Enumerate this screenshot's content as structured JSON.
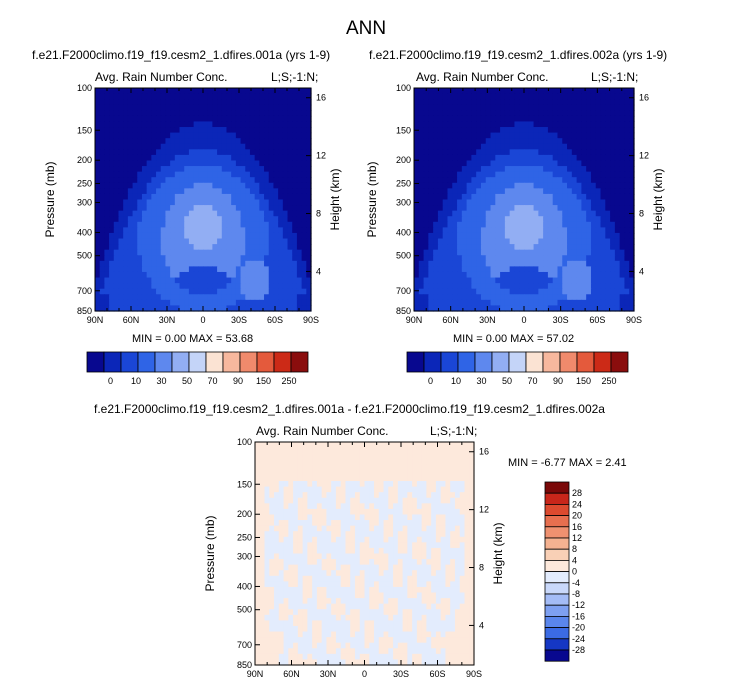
{
  "figure": {
    "title": "ANN"
  },
  "colors": {
    "abs_scale": [
      "#08088f",
      "#0b26b8",
      "#1a46d6",
      "#2f64e6",
      "#5e88ee",
      "#92aef3",
      "#c4d4f8",
      "#fbe3d3",
      "#f7b89e",
      "#f08a6c",
      "#e45a3c",
      "#cc2a17",
      "#8a0d0d"
    ],
    "diff_scale": [
      "#08088f",
      "#0b1fa8",
      "#1537c4",
      "#2451d9",
      "#3b6be4",
      "#5a86ec",
      "#7ea0f1",
      "#a4bcf6",
      "#c9d8fa",
      "#e3ecfd",
      "#fde9dc",
      "#f9d0b6",
      "#f5b291",
      "#ef9170",
      "#e76f4f",
      "#dc4a2f",
      "#c8261a",
      "#a01010",
      "#7a0808"
    ]
  },
  "chart_data": [
    {
      "type": "heatmap",
      "case_title": "f.e21.F2000climo.f19_f19.cesm2_1.dfires.001a (yrs 1-9)",
      "left_label": "Avg. Rain Number Conc.",
      "right_label": "L;S;-1:N;",
      "xlabel": "",
      "ylabel": "Pressure (mb)",
      "y2label": "Height (km)",
      "x_ticks": [
        "90N",
        "60N",
        "30N",
        "0",
        "30S",
        "60S",
        "90S"
      ],
      "y_ticks": [
        "100",
        "150",
        "200",
        "250",
        "300",
        "400",
        "500",
        "700",
        "850"
      ],
      "y2_ticks": [
        "16",
        "12",
        "8",
        "4"
      ],
      "xlim": [
        90,
        -90
      ],
      "ylim": [
        850,
        100
      ],
      "ylog": true,
      "min_max": "MIN =  0.00  MAX = 53.68",
      "min": 0.0,
      "max": 53.68,
      "colorbar_labels": [
        "0",
        "10",
        "30",
        "50",
        "70",
        "90",
        "150",
        "250"
      ]
    },
    {
      "type": "heatmap",
      "case_title": "f.e21.F2000climo.f19_f19.cesm2_1.dfires.002a (yrs 1-9)",
      "left_label": "Avg. Rain Number Conc.",
      "right_label": "L;S;-1:N;",
      "xlabel": "",
      "ylabel": "Pressure (mb)",
      "y2label": "Height (km)",
      "x_ticks": [
        "90N",
        "60N",
        "30N",
        "0",
        "30S",
        "60S",
        "90S"
      ],
      "y_ticks": [
        "100",
        "150",
        "200",
        "250",
        "300",
        "400",
        "500",
        "700",
        "850"
      ],
      "y2_ticks": [
        "16",
        "12",
        "8",
        "4"
      ],
      "xlim": [
        90,
        -90
      ],
      "ylim": [
        850,
        100
      ],
      "ylog": true,
      "min_max": "MIN =  0.00  MAX = 57.02",
      "min": 0.0,
      "max": 57.02,
      "colorbar_labels": [
        "0",
        "10",
        "30",
        "50",
        "70",
        "90",
        "150",
        "250"
      ]
    },
    {
      "type": "heatmap",
      "case_title": "f.e21.F2000climo.f19_f19.cesm2_1.dfires.001a - f.e21.F2000climo.f19_f19.cesm2_1.dfires.002a",
      "left_label": "Avg. Rain Number Conc.",
      "right_label": "L;S;-1:N;",
      "xlabel": "",
      "ylabel": "Pressure (mb)",
      "y2label": "Height (km)",
      "x_ticks": [
        "90N",
        "60N",
        "30N",
        "0",
        "30S",
        "60S",
        "90S"
      ],
      "y_ticks": [
        "100",
        "150",
        "200",
        "250",
        "300",
        "400",
        "500",
        "700",
        "850"
      ],
      "y2_ticks": [
        "16",
        "12",
        "8",
        "4"
      ],
      "xlim": [
        90,
        -90
      ],
      "ylim": [
        850,
        100
      ],
      "ylog": true,
      "min_max": "MIN = -6.77  MAX =  2.41",
      "min": -6.77,
      "max": 2.41,
      "colorbar_labels": [
        "28",
        "24",
        "20",
        "16",
        "12",
        "8",
        "4",
        "0",
        "-4",
        "-8",
        "-12",
        "-16",
        "-20",
        "-24",
        "-28"
      ]
    }
  ]
}
